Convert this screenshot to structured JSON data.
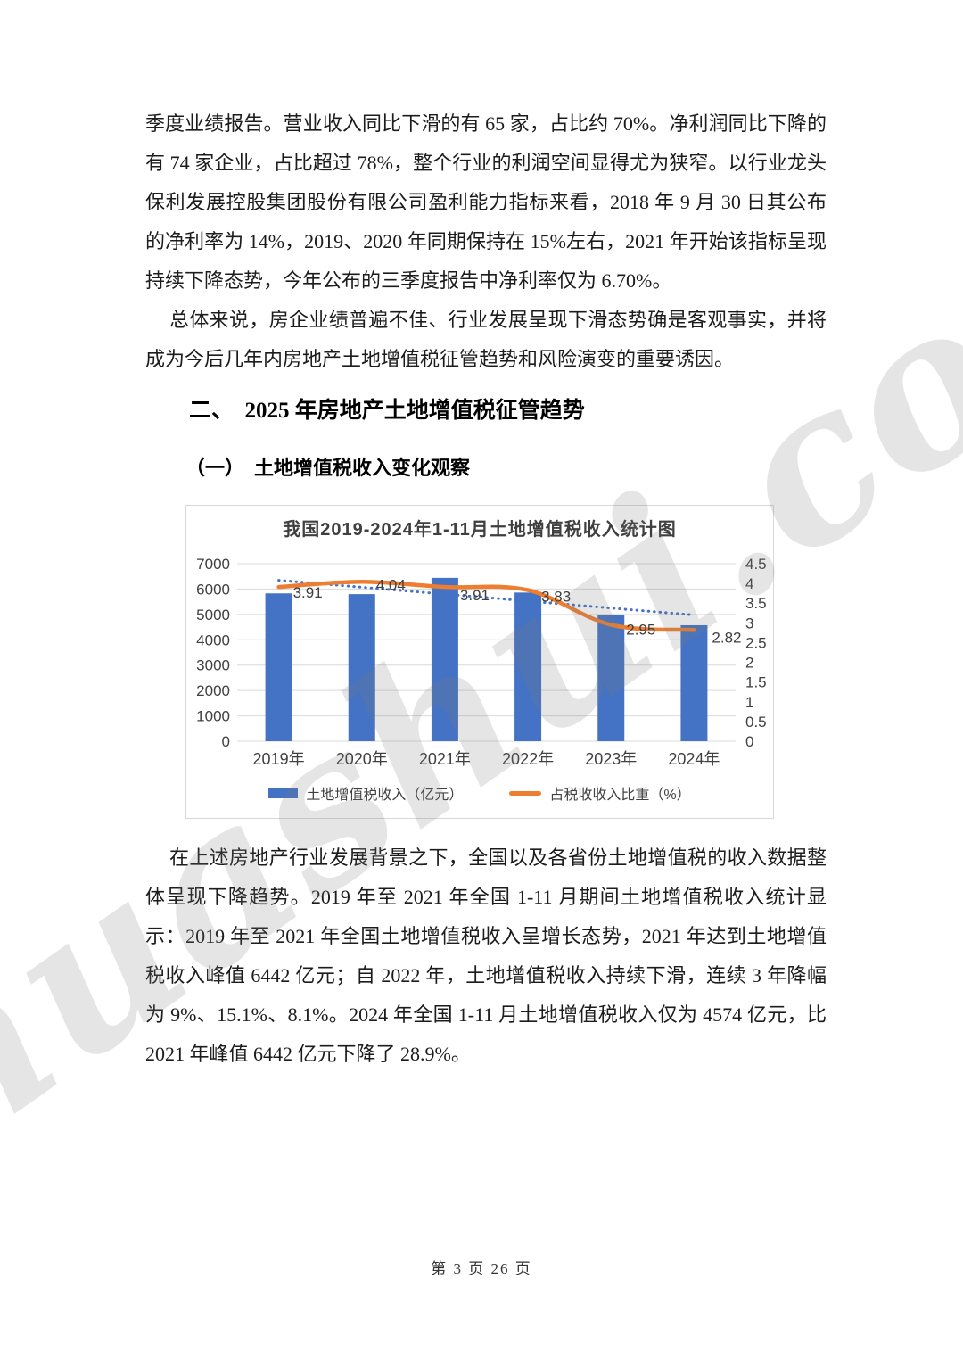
{
  "document": {
    "watermark": "huashui.com",
    "paragraphs": {
      "p1": "季度业绩报告。营业收入同比下滑的有 65 家，占比约 70%。净利润同比下降的有 74 家企业，占比超过 78%，整个行业的利润空间显得尤为狭窄。以行业龙头保利发展控股集团股份有限公司盈利能力指标来看，2018 年 9 月 30 日其公布的净利率为 14%，2019、2020 年同期保持在 15%左右，2021 年开始该指标呈现持续下降态势，今年公布的三季度报告中净利率仅为 6.70%。",
      "p2": "总体来说，房企业绩普遍不佳、行业发展呈现下滑态势确是客观事实，并将成为今后几年内房地产土地增值税征管趋势和风险演变的重要诱因。",
      "p3": "在上述房地产行业发展背景之下，全国以及各省份土地增值税的收入数据整体呈现下降趋势。2019 年至 2021 年全国 1-11 月期间土地增值税收入统计显示：2019 年至 2021 年全国土地增值税收入呈增长态势，2021 年达到土地增值税收入峰值 6442 亿元；自 2022 年，土地增值税收入持续下滑，连续 3 年降幅为 9%、15.1%、8.1%。2024 年全国 1-11 月土地增值税收入仅为 4574 亿元，比 2021 年峰值 6442 亿元下降了 28.9%。"
    },
    "headings": {
      "section": "二、　2025 年房地产土地增值税征管趋势",
      "subsection": "（一）　土地增值税收入变化观察"
    },
    "footer": "第 3 页 26 页"
  },
  "chart_data": {
    "type": "bar",
    "title": "我国2019-2024年1-11月土地增值税收入统计图",
    "categories": [
      "2019年",
      "2020年",
      "2021年",
      "2022年",
      "2023年",
      "2024年"
    ],
    "series": [
      {
        "name": "土地增值税收入（亿元）",
        "type": "bar",
        "axis": "left",
        "color": "#4472C4",
        "values": [
          5830,
          5800,
          6442,
          5862,
          4977,
          4574
        ]
      },
      {
        "name": "占税收收入比重（%）",
        "type": "line",
        "axis": "right",
        "color": "#ED7D31",
        "values": [
          3.91,
          4.04,
          3.91,
          3.83,
          2.95,
          2.82
        ],
        "point_labels": [
          "3.91",
          "4.04",
          "3.91",
          "3.83",
          "2.95",
          "2.82"
        ]
      }
    ],
    "trendline": {
      "of_series": "占税收收入比重（%）",
      "style": "dotted",
      "color": "#4472C4",
      "axis": "right",
      "start_value": 4.08,
      "end_value": 3.2
    },
    "axes": {
      "left": {
        "min": 0,
        "max": 7000,
        "step": 1000
      },
      "right": {
        "min": 0,
        "max": 4.5,
        "step": 0.5
      }
    },
    "grid": true,
    "legend_position": "bottom",
    "label_color": "#404040"
  }
}
